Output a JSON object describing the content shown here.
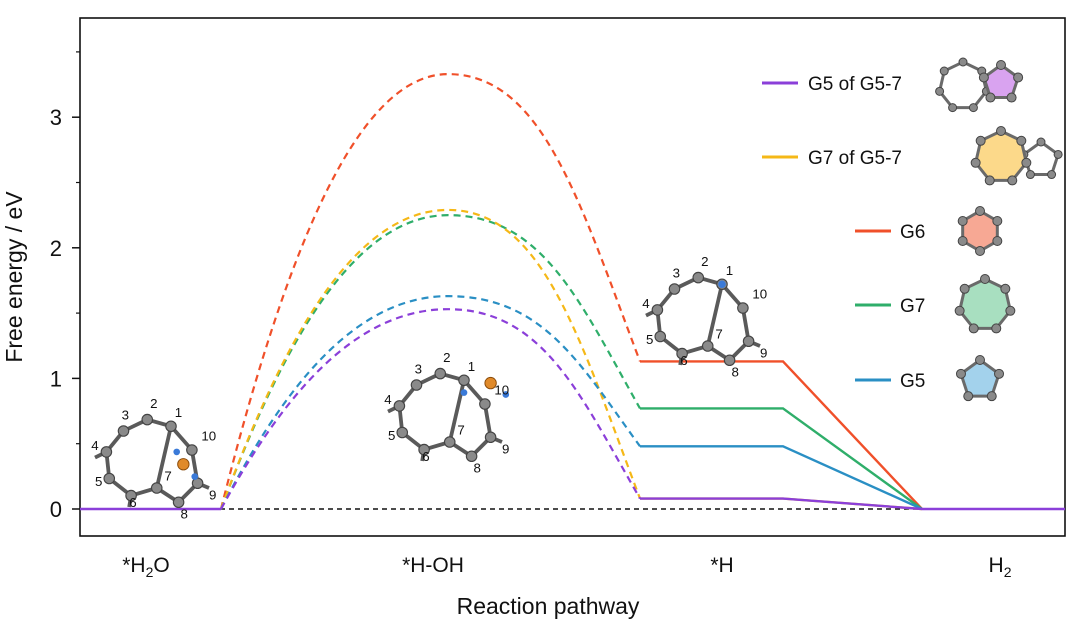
{
  "chart_data": {
    "type": "line",
    "ylabel": "Free energy / eV",
    "xlabel": "Reaction pathway",
    "ylim": [
      -0.2,
      3.7
    ],
    "yticks": [
      0,
      1,
      2,
      3
    ],
    "categories": [
      {
        "main": "*H",
        "sub": "2",
        "tail": "O"
      },
      {
        "main": "*H-OH",
        "sub": "",
        "tail": ""
      },
      {
        "main": "*H",
        "sub": "",
        "tail": ""
      },
      {
        "main": "H",
        "sub": "2",
        "tail": ""
      }
    ],
    "legend_position": "right",
    "series": [
      {
        "name": "G5 of G5-7",
        "color": "#8b3fd9",
        "barrier": 1.53,
        "intermediate": 0.08,
        "final": 0
      },
      {
        "name": "G7 of G5-7",
        "color": "#f5b817",
        "barrier": 2.29,
        "intermediate": 0.08,
        "final": 0
      },
      {
        "name": "G6",
        "color": "#f0502a",
        "barrier": 3.33,
        "intermediate": 1.13,
        "final": 0
      },
      {
        "name": "G7",
        "color": "#2fae6a",
        "barrier": 2.25,
        "intermediate": 0.77,
        "final": 0
      },
      {
        "name": "G5",
        "color": "#2a8fc4",
        "barrier": 1.63,
        "intermediate": 0.48,
        "final": 0
      }
    ],
    "initial_level": 0,
    "molecule_labels": {
      "water": [
        "1",
        "2",
        "3",
        "4",
        "5",
        "6",
        "7",
        "8",
        "9",
        "10"
      ],
      "hoh": [
        "1",
        "2",
        "3",
        "4",
        "5",
        "6",
        "7",
        "8",
        "9",
        "10"
      ],
      "h": [
        "1",
        "2",
        "3",
        "4",
        "5",
        "6",
        "7",
        "8",
        "9",
        "10"
      ]
    },
    "legend_fills": [
      "#d9a3f0",
      "#fcd98a",
      "#f7a894",
      "#a8dfc0",
      "#a3d2ec"
    ]
  }
}
